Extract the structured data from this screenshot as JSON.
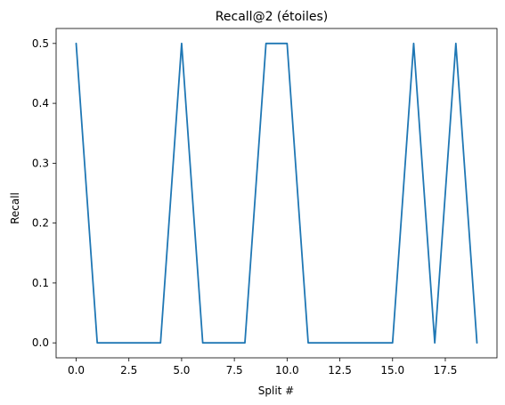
{
  "chart_data": {
    "type": "line",
    "title": "Recall@2 (étoiles)",
    "xlabel": "Split #",
    "ylabel": "Recall",
    "xlim": [
      -0.95,
      19.95
    ],
    "ylim": [
      -0.025,
      0.525
    ],
    "x_ticks": [
      0,
      2.5,
      5,
      7.5,
      10,
      12.5,
      15,
      17.5
    ],
    "x_tick_labels": [
      "0.0",
      "2.5",
      "5.0",
      "7.5",
      "10.0",
      "12.5",
      "15.0",
      "17.5"
    ],
    "y_ticks": [
      0,
      0.1,
      0.2,
      0.3,
      0.4,
      0.5
    ],
    "y_tick_labels": [
      "0.0",
      "0.1",
      "0.2",
      "0.3",
      "0.4",
      "0.5"
    ],
    "grid": false,
    "legend": "none",
    "series": [
      {
        "color": "#1f77b4",
        "x": [
          0,
          1,
          2,
          3,
          4,
          5,
          6,
          7,
          8,
          9,
          10,
          11,
          12,
          13,
          14,
          15,
          16,
          17,
          18,
          19
        ],
        "values": [
          0.5,
          0.0,
          0.0,
          0.0,
          0.0,
          0.5,
          0.0,
          0.0,
          0.0,
          0.5,
          0.5,
          0.0,
          0.0,
          0.0,
          0.0,
          0.0,
          0.5,
          0.0,
          0.5,
          0.0
        ]
      }
    ]
  }
}
